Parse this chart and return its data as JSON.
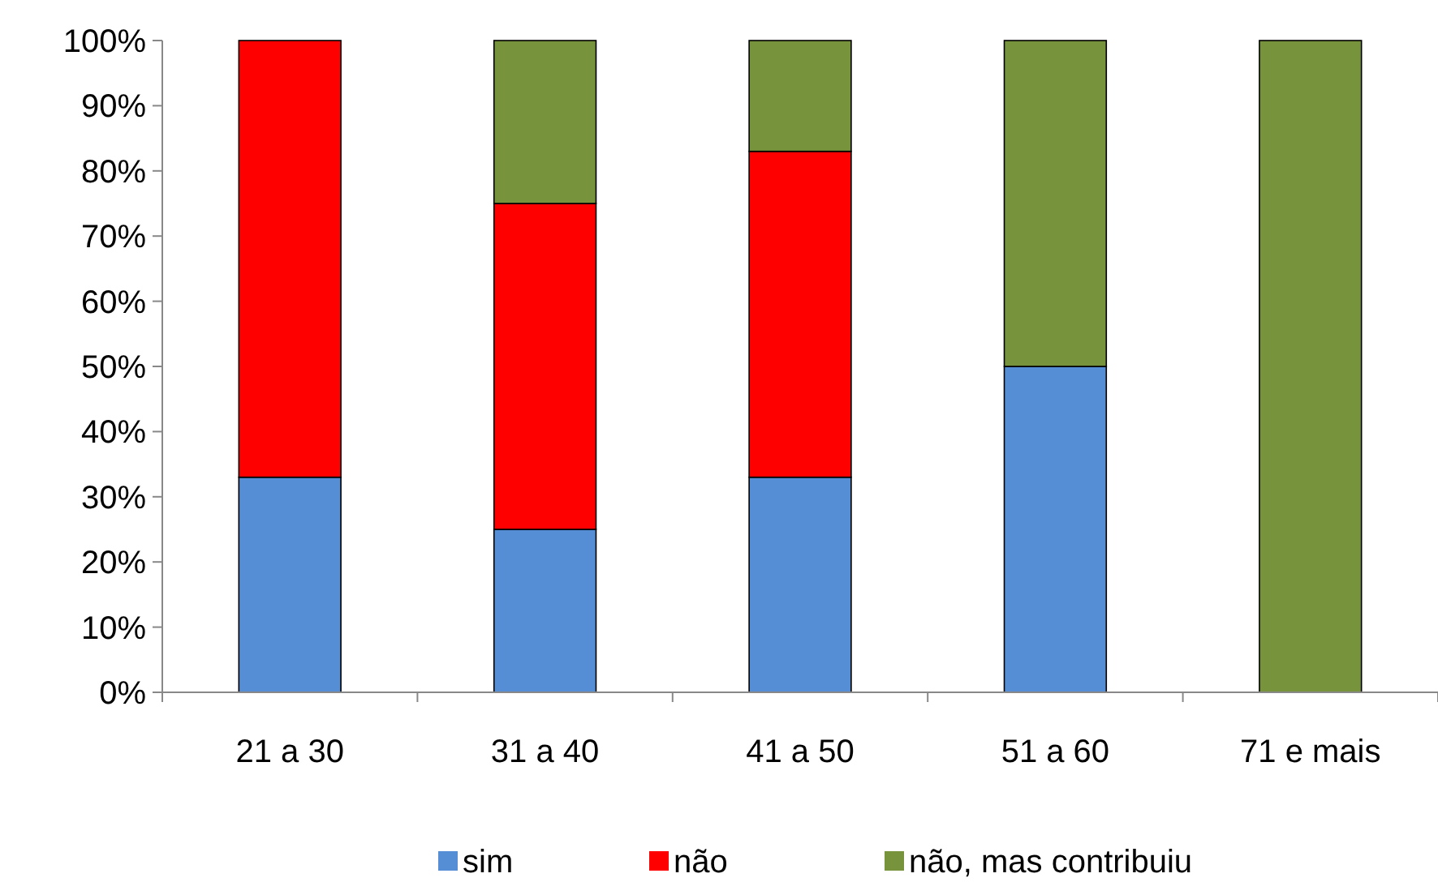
{
  "chart_data": {
    "type": "bar",
    "stacked": true,
    "categories": [
      "21 a 30",
      "31 a 40",
      "41 a 50",
      "51 a 60",
      "71 e mais"
    ],
    "series": [
      {
        "name": "sim",
        "color": "#558ed5",
        "values": [
          33,
          25,
          33,
          50,
          0
        ]
      },
      {
        "name": "não",
        "color": "#ff0000",
        "values": [
          67,
          50,
          50,
          0,
          0
        ]
      },
      {
        "name": "não, mas contribuiu",
        "color": "#77933c",
        "values": [
          0,
          25,
          17,
          50,
          100
        ]
      }
    ],
    "ylim": [
      0,
      100
    ],
    "yticks": [
      {
        "value": 0,
        "label": "0%"
      },
      {
        "value": 10,
        "label": "10%"
      },
      {
        "value": 20,
        "label": "20%"
      },
      {
        "value": 30,
        "label": "30%"
      },
      {
        "value": 40,
        "label": "40%"
      },
      {
        "value": 50,
        "label": "50%"
      },
      {
        "value": 60,
        "label": "60%"
      },
      {
        "value": 70,
        "label": "70%"
      },
      {
        "value": 80,
        "label": "80%"
      },
      {
        "value": 90,
        "label": "90%"
      },
      {
        "value": 100,
        "label": "100%"
      }
    ],
    "grid": false,
    "legend": "bottom"
  }
}
